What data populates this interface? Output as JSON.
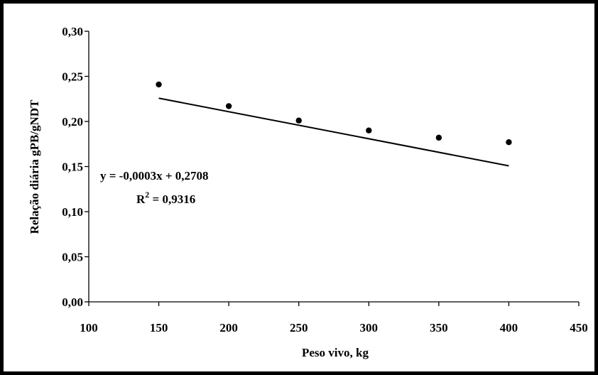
{
  "chart_data": {
    "type": "scatter",
    "title": "",
    "xlabel": "Peso vivo, kg",
    "ylabel": "Relação diária gPB/gNDT",
    "xlim": [
      100,
      450
    ],
    "ylim": [
      0,
      0.3
    ],
    "x_ticks": [
      100,
      150,
      200,
      250,
      300,
      350,
      400,
      450
    ],
    "x_tick_labels": [
      "100",
      "150",
      "200",
      "250",
      "300",
      "350",
      "400",
      "450"
    ],
    "y_ticks": [
      0,
      0.05,
      0.1,
      0.15,
      0.2,
      0.25,
      0.3
    ],
    "y_tick_labels": [
      "0,00",
      "0,05",
      "0,10",
      "0,15",
      "0,20",
      "0,25",
      "0,30"
    ],
    "grid": false,
    "series": [
      {
        "x": [
          150,
          200,
          250,
          300,
          350,
          400
        ],
        "y": [
          0.241,
          0.217,
          0.201,
          0.19,
          0.182,
          0.177
        ]
      }
    ],
    "trendline": {
      "type": "linear",
      "slope": -0.0003,
      "intercept": 0.2708,
      "x_range": [
        150,
        400
      ]
    },
    "annotations": {
      "equation": "y = -0,0003x + 0,2708",
      "r2_prefix": "R",
      "r2_sup": "2",
      "r2_value": " = 0,9316"
    },
    "colors": {
      "marker": "#000000",
      "line": "#000000",
      "axis": "#000000"
    }
  }
}
